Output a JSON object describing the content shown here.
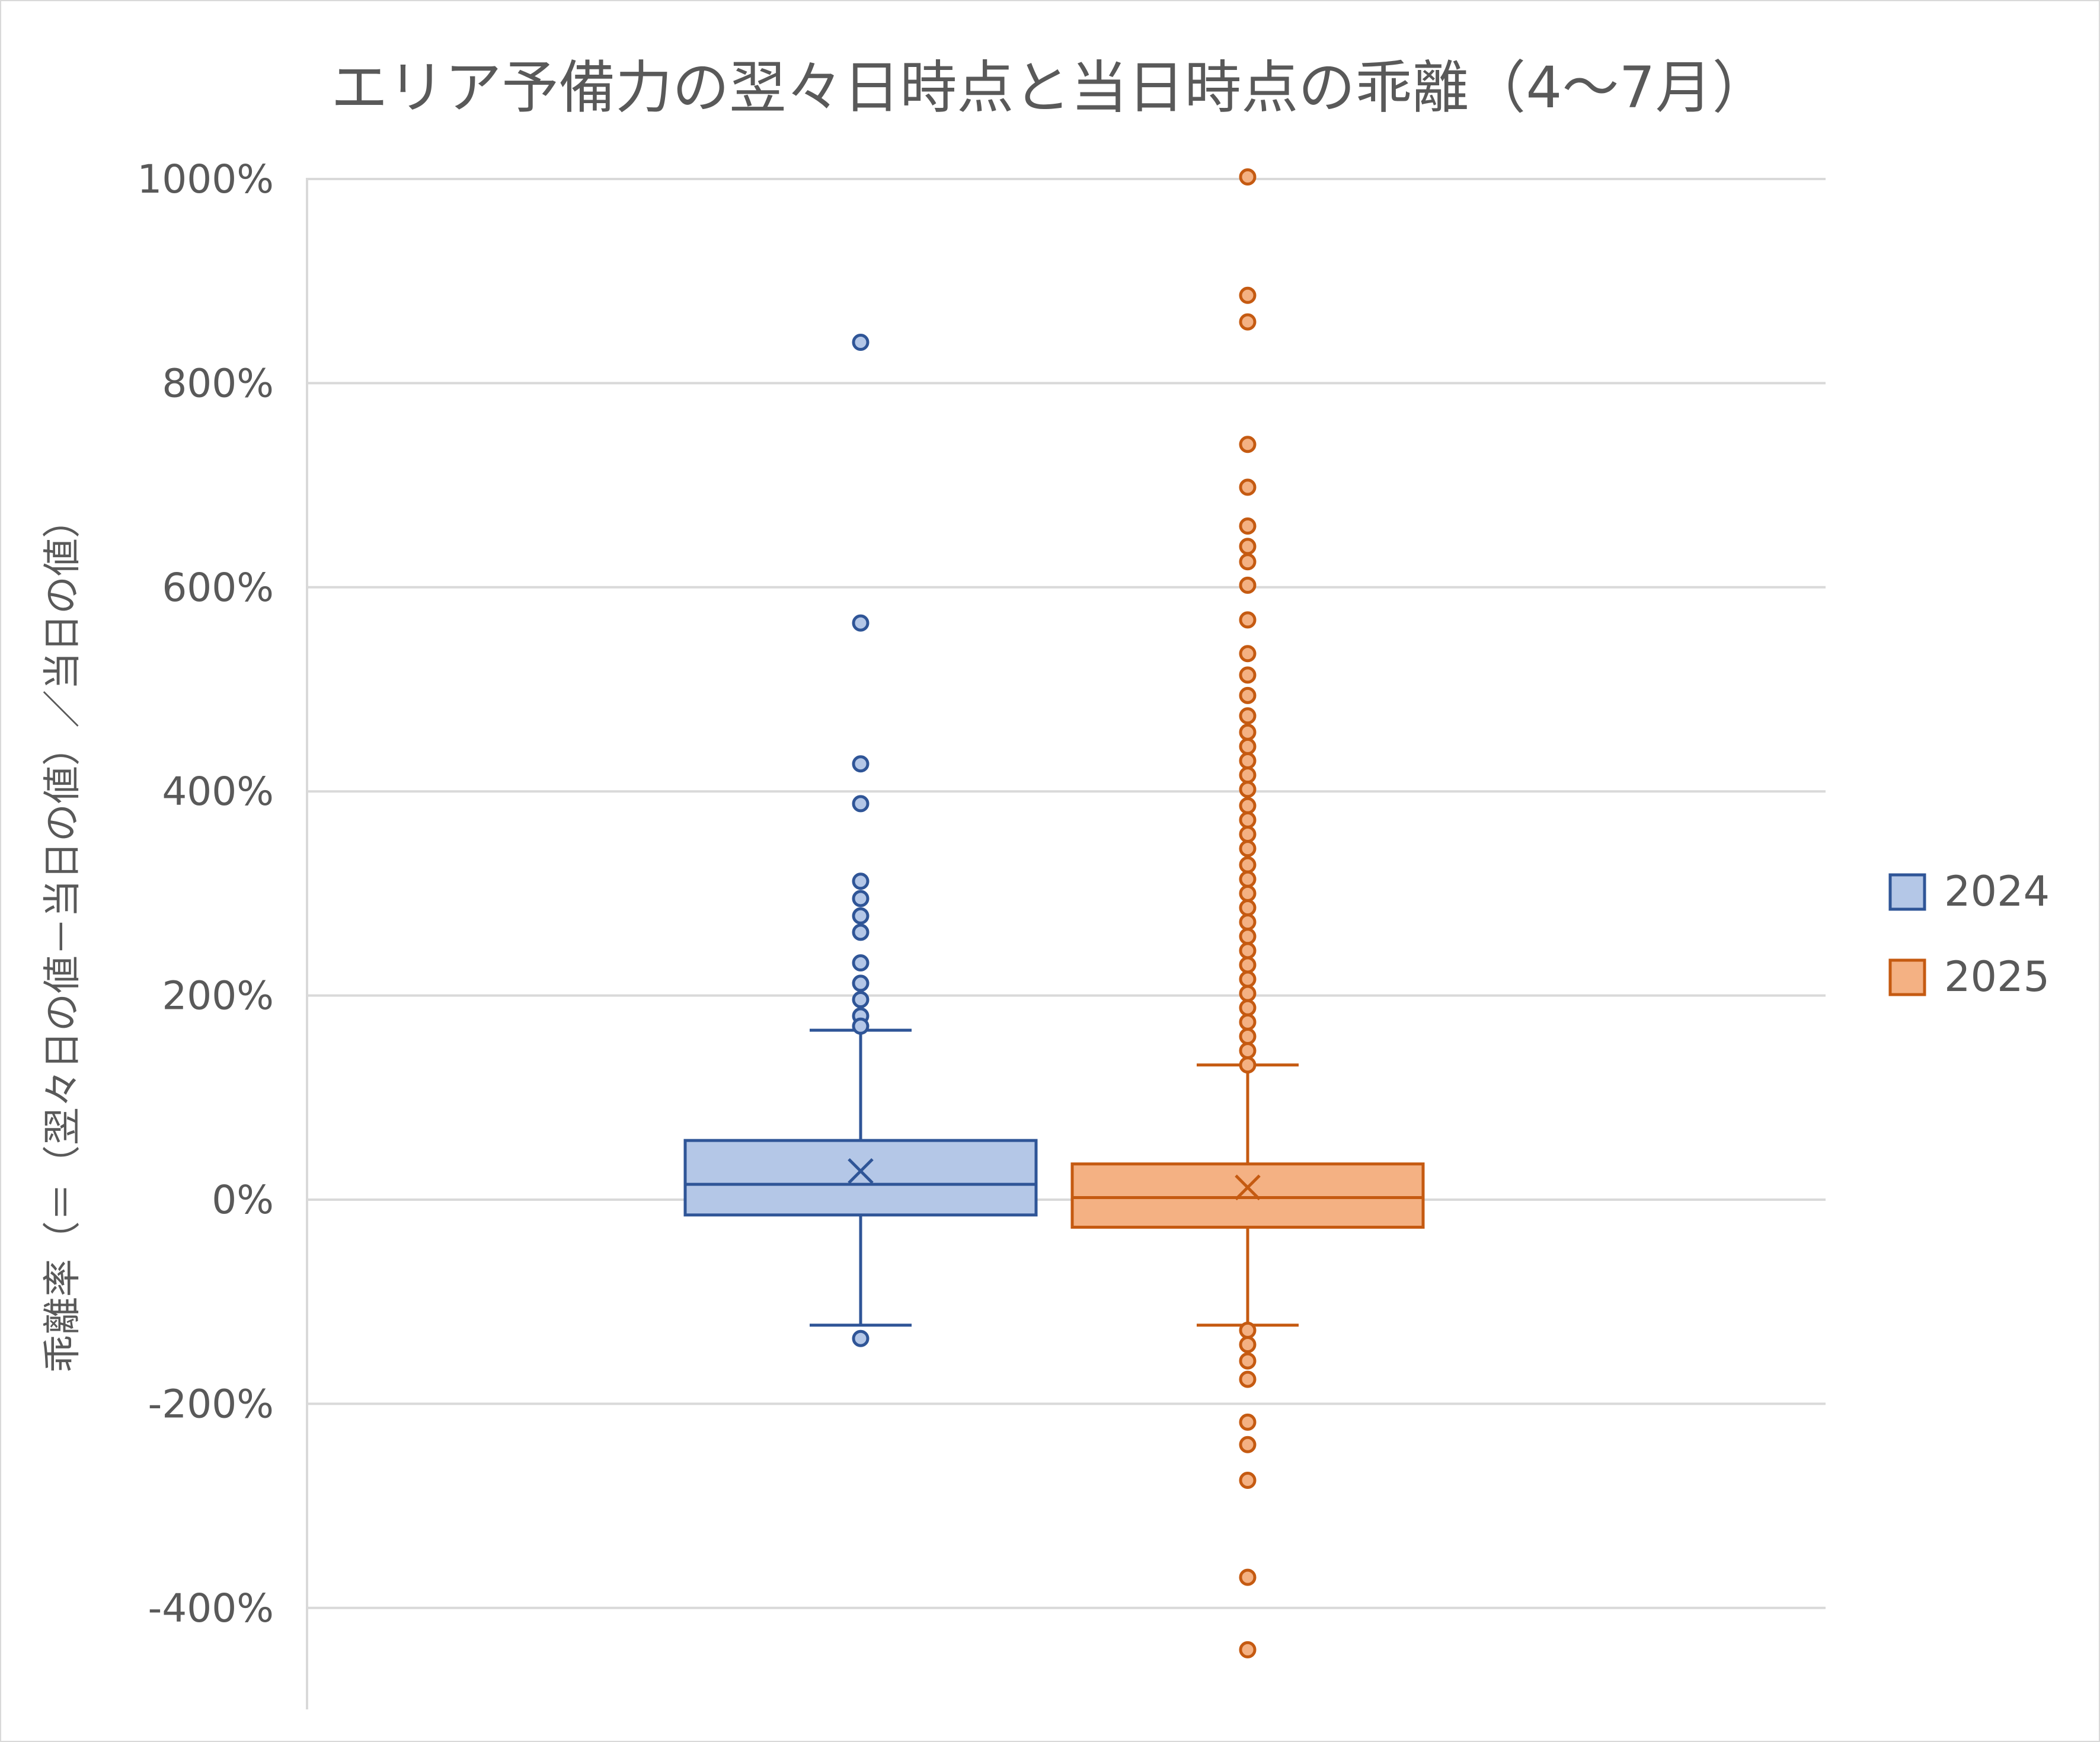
{
  "chart_data": {
    "type": "box",
    "title": "エリア予備力の翌々日時点と当日時点の乖離（4～7月）",
    "ylabel": "乖離率（＝（翌々日の値－当日の値）／当日の値）",
    "ylim": [
      -500,
      1000
    ],
    "yticks": [
      "1000%",
      "800%",
      "600%",
      "400%",
      "200%",
      "0%",
      "-200%",
      "-400%"
    ],
    "ytick_values": [
      1000,
      800,
      600,
      400,
      200,
      0,
      -200,
      -400
    ],
    "grid": true,
    "legend_position": "right",
    "series": [
      {
        "name": "2024",
        "color": "#2f5597",
        "fill": "#b4c7e7",
        "whisker_low": -123,
        "q1": -15,
        "median": 15,
        "q3": 58,
        "whisker_high": 166,
        "mean": 28,
        "outliers": [
          840,
          565,
          427,
          388,
          312,
          295,
          278,
          262,
          232,
          212,
          196,
          180,
          170,
          -136
        ]
      },
      {
        "name": "2025",
        "color": "#c55a11",
        "fill": "#f4b183",
        "whisker_low": -123,
        "q1": -27,
        "median": 2,
        "q3": 35,
        "whisker_high": 132,
        "mean": 12,
        "outliers": [
          1002,
          886,
          860,
          740,
          698,
          660,
          640,
          625,
          602,
          568,
          535,
          514,
          494,
          474,
          458,
          444,
          430,
          416,
          402,
          386,
          372,
          358,
          344,
          328,
          314,
          300,
          286,
          272,
          258,
          244,
          230,
          216,
          202,
          188,
          174,
          160,
          146,
          132,
          -128,
          -142,
          -158,
          -176,
          -218,
          -240,
          -275,
          -370,
          -441
        ]
      }
    ]
  }
}
